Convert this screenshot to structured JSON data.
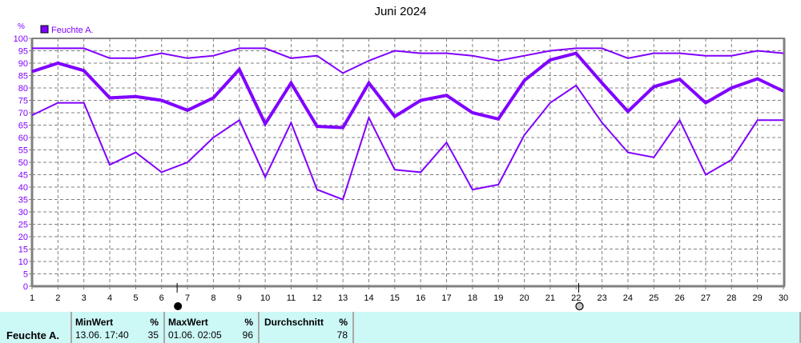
{
  "title": "Juni 2024",
  "chart_data": {
    "type": "line",
    "title": "Juni 2024",
    "xlabel": "",
    "ylabel": "%",
    "ylim": [
      0,
      100
    ],
    "yticks": [
      0,
      5,
      10,
      15,
      20,
      25,
      30,
      35,
      40,
      45,
      50,
      55,
      60,
      65,
      70,
      75,
      80,
      85,
      90,
      95,
      100
    ],
    "x": [
      1,
      2,
      3,
      4,
      5,
      6,
      7,
      8,
      9,
      10,
      11,
      12,
      13,
      14,
      15,
      16,
      17,
      18,
      19,
      20,
      21,
      22,
      23,
      24,
      25,
      26,
      27,
      28,
      29,
      30
    ],
    "grid": true,
    "legend": {
      "position": "top-left",
      "entries": [
        "Feuchte A."
      ]
    },
    "series": [
      {
        "name": "Feuchte A. Max",
        "color": "#8000ff",
        "width": 2,
        "values": [
          96,
          96,
          96,
          92,
          92,
          94,
          92,
          93,
          96,
          96,
          92,
          93,
          86,
          91,
          95,
          94,
          94,
          93,
          91,
          93,
          95,
          96,
          96,
          92,
          94,
          94,
          93,
          93,
          95,
          94
        ]
      },
      {
        "name": "Feuchte A. Mittel",
        "color": "#8000ff",
        "width": 4,
        "values": [
          86.6,
          90,
          87,
          76,
          76.5,
          75,
          71,
          76,
          87.5,
          65.5,
          82,
          64.5,
          64,
          82,
          68.5,
          75,
          77,
          70,
          67.5,
          83,
          91.3,
          94,
          82,
          70.5,
          80.5,
          83.5,
          74,
          80,
          83.7,
          78.7
        ]
      },
      {
        "name": "Feuchte A. Min",
        "color": "#8000ff",
        "width": 2,
        "values": [
          69,
          74,
          74,
          49,
          54,
          46,
          50,
          60,
          67,
          44,
          66,
          39,
          35,
          68,
          47,
          46,
          58,
          39,
          41,
          61,
          74,
          81,
          66,
          54,
          52,
          67,
          45,
          51,
          67,
          67
        ]
      }
    ],
    "annotations": [
      {
        "type": "moon-phase",
        "phase": "new-moon",
        "x": 6.6
      },
      {
        "type": "moon-phase",
        "phase": "full-moon",
        "x": 22.1
      }
    ]
  },
  "legend": {
    "label": "Feuchte A.",
    "color": "#8000ff"
  },
  "y_axis_unit": "%",
  "stats": {
    "series_name": "Feuchte A.",
    "min": {
      "header": "MinWert",
      "unit": "%",
      "datetime": "13.06.  17:40",
      "value": "35"
    },
    "max": {
      "header": "MaxWert",
      "unit": "%",
      "datetime": "01.06.  02:05",
      "value": "96"
    },
    "avg": {
      "header": "Durchschnitt",
      "unit": "%",
      "value": "78"
    }
  },
  "colors": {
    "series": "#8000ff",
    "axis": "#808080",
    "grid": "#808080",
    "panel": "#ccf8f6"
  }
}
